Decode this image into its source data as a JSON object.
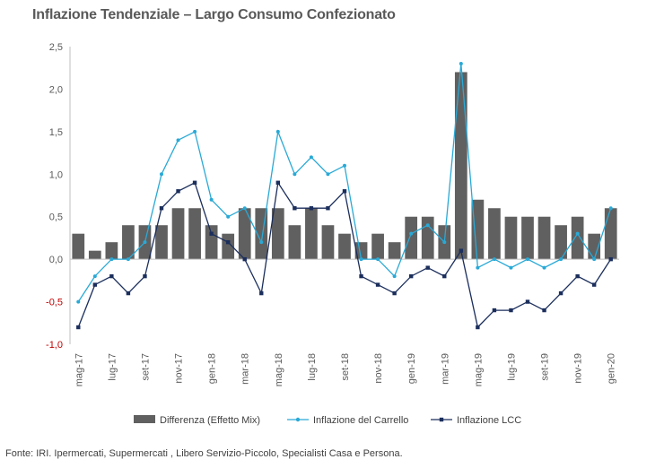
{
  "title": "Inflazione Tendenziale – Largo Consumo Confezionato",
  "footer": "Fonte: IRI. Ipermercati, Supermercati , Libero Servizio-Piccolo, Specialisti Casa e Persona.",
  "colors": {
    "bars": "#606060",
    "carrello": "#29a9d6",
    "lcc": "#1b2e5c",
    "axis": "#bfbfbf",
    "negative_tick": "#c00000"
  },
  "chart_data": {
    "type": "bar",
    "periods": [
      "mag-17",
      "giu-17",
      "lug-17",
      "ago-17",
      "set-17",
      "ott-17",
      "nov-17",
      "dic-17",
      "gen-18",
      "feb-18",
      "mar-18",
      "apr-18",
      "mag-18",
      "giu-18",
      "lug-18",
      "ago-18",
      "set-18",
      "ott-18",
      "nov-18",
      "dic-18",
      "gen-19",
      "feb-19",
      "mar-19",
      "apr-19",
      "mag-19",
      "giu-19",
      "lug-19",
      "ago-19",
      "set-19",
      "ott-19",
      "nov-19",
      "dic-19",
      "gen-20"
    ],
    "tick_labels": [
      "mag-17",
      "lug-17",
      "set-17",
      "nov-17",
      "gen-18",
      "mar-18",
      "mag-18",
      "lug-18",
      "set-18",
      "nov-18",
      "gen-19",
      "mar-19",
      "mag-19",
      "lug-19",
      "set-19",
      "nov-19",
      "gen-20"
    ],
    "ylim": [
      -1.0,
      2.5
    ],
    "yticks": [
      "-1,0",
      "-0,5",
      "0,0",
      "0,5",
      "1,0",
      "1,5",
      "2,0",
      "2,5"
    ],
    "ytick_values": [
      -1.0,
      -0.5,
      0.0,
      0.5,
      1.0,
      1.5,
      2.0,
      2.5
    ],
    "series": [
      {
        "name": "Differenza (Effetto Mix)",
        "type": "bar",
        "values": [
          0.3,
          0.1,
          0.2,
          0.4,
          0.4,
          0.4,
          0.6,
          0.6,
          0.4,
          0.3,
          0.6,
          0.6,
          0.6,
          0.4,
          0.6,
          0.4,
          0.3,
          0.2,
          0.3,
          0.2,
          0.5,
          0.5,
          0.4,
          2.2,
          0.7,
          0.6,
          0.5,
          0.5,
          0.5,
          0.4,
          0.5,
          0.3,
          0.6
        ]
      },
      {
        "name": "Inflazione del Carrello",
        "type": "line",
        "values": [
          -0.5,
          -0.2,
          0.0,
          0.0,
          0.2,
          1.0,
          1.4,
          1.5,
          0.7,
          0.5,
          0.6,
          0.2,
          1.5,
          1.0,
          1.2,
          1.0,
          1.1,
          0.0,
          0.0,
          -0.2,
          0.3,
          0.4,
          0.2,
          2.3,
          -0.1,
          0.0,
          -0.1,
          0.0,
          -0.1,
          0.0,
          0.3,
          0.0,
          0.6
        ]
      },
      {
        "name": "Inflazione LCC",
        "type": "line",
        "values": [
          -0.8,
          -0.3,
          -0.2,
          -0.4,
          -0.2,
          0.6,
          0.8,
          0.9,
          0.3,
          0.2,
          0.0,
          -0.4,
          0.9,
          0.6,
          0.6,
          0.6,
          0.8,
          -0.2,
          -0.3,
          -0.4,
          -0.2,
          -0.1,
          -0.2,
          0.1,
          -0.8,
          -0.6,
          -0.6,
          -0.5,
          -0.6,
          -0.4,
          -0.2,
          -0.3,
          0.0
        ]
      }
    ],
    "legend_position": "bottom",
    "grid": false
  }
}
